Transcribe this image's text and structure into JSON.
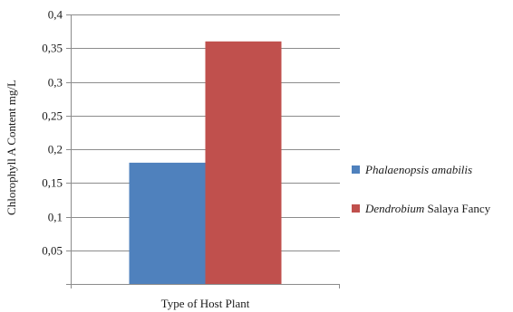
{
  "chart_data": {
    "type": "bar",
    "title": "",
    "xlabel": "Type of Host Plant",
    "ylabel": "Chlorophyll A Content mg/L",
    "ylim": [
      0.05,
      0.4
    ],
    "yticks": [
      "0,05",
      "0,1",
      "0,15",
      "0,2",
      "0,25",
      "0,3",
      "0,35",
      "0,4"
    ],
    "grid": true,
    "legend_position": "right",
    "categories": [
      ""
    ],
    "series": [
      {
        "name": "Phalaenopsis amabilis",
        "name_italic": "Phalaenopsis amabilis",
        "name_rest": "",
        "color": "#4f81bd",
        "values": [
          0.18
        ]
      },
      {
        "name": "Dendrobium Salaya Fancy",
        "name_italic": "Dendrobium",
        "name_rest": " Salaya Fancy",
        "color": "#c0504d",
        "values": [
          0.36
        ]
      }
    ]
  }
}
